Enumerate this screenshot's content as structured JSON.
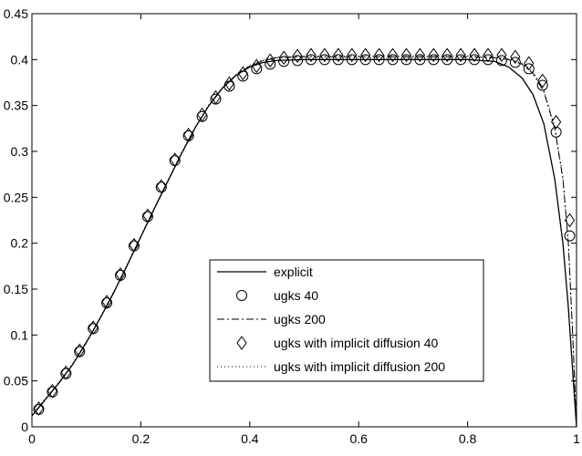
{
  "chart_data": {
    "type": "line",
    "title": "",
    "xlabel": "",
    "ylabel": "",
    "xlim": [
      0,
      1
    ],
    "ylim": [
      0,
      0.45
    ],
    "xticks": [
      0,
      0.2,
      0.4,
      0.6,
      0.8,
      1
    ],
    "yticks": [
      0,
      0.05,
      0.1,
      0.15,
      0.2,
      0.25,
      0.3,
      0.35,
      0.4,
      0.45
    ],
    "grid": false,
    "legend_position": "bottom-center",
    "series": [
      {
        "name": "explicit",
        "style": "solid",
        "x": [
          0,
          0.025,
          0.05,
          0.075,
          0.1,
          0.125,
          0.15,
          0.175,
          0.2,
          0.225,
          0.25,
          0.275,
          0.3,
          0.325,
          0.35,
          0.375,
          0.4,
          0.425,
          0.45,
          0.5,
          0.55,
          0.6,
          0.65,
          0.7,
          0.75,
          0.8,
          0.85,
          0.875,
          0.9,
          0.92,
          0.94,
          0.96,
          0.975,
          0.985,
          0.993,
          1
        ],
        "y": [
          0.012,
          0.03,
          0.048,
          0.068,
          0.092,
          0.118,
          0.146,
          0.176,
          0.207,
          0.238,
          0.268,
          0.298,
          0.326,
          0.35,
          0.369,
          0.383,
          0.392,
          0.397,
          0.399,
          0.4,
          0.4,
          0.4,
          0.4,
          0.4,
          0.4,
          0.4,
          0.398,
          0.392,
          0.38,
          0.362,
          0.33,
          0.27,
          0.2,
          0.13,
          0.06,
          0
        ]
      },
      {
        "name": "ugks 40",
        "style": "circle",
        "x": [
          0.0125,
          0.0375,
          0.0625,
          0.0875,
          0.1125,
          0.1375,
          0.1625,
          0.1875,
          0.2125,
          0.2375,
          0.2625,
          0.2875,
          0.3125,
          0.3375,
          0.3625,
          0.3875,
          0.4125,
          0.4375,
          0.4625,
          0.4875,
          0.5125,
          0.5375,
          0.5625,
          0.5875,
          0.6125,
          0.6375,
          0.6625,
          0.6875,
          0.7125,
          0.7375,
          0.7625,
          0.7875,
          0.8125,
          0.8375,
          0.8625,
          0.8875,
          0.9125,
          0.9375,
          0.9625,
          0.9875
        ],
        "y": [
          0.019,
          0.038,
          0.058,
          0.082,
          0.107,
          0.135,
          0.165,
          0.197,
          0.229,
          0.261,
          0.29,
          0.317,
          0.338,
          0.357,
          0.371,
          0.382,
          0.39,
          0.395,
          0.398,
          0.399,
          0.4,
          0.4,
          0.4,
          0.4,
          0.4,
          0.4,
          0.4,
          0.4,
          0.4,
          0.4,
          0.4,
          0.4,
          0.4,
          0.4,
          0.399,
          0.397,
          0.39,
          0.372,
          0.321,
          0.208
        ]
      },
      {
        "name": "ugks 200",
        "style": "dashdot",
        "x": [
          0,
          0.025,
          0.05,
          0.075,
          0.1,
          0.125,
          0.15,
          0.175,
          0.2,
          0.225,
          0.25,
          0.275,
          0.3,
          0.325,
          0.35,
          0.375,
          0.4,
          0.425,
          0.45,
          0.5,
          0.55,
          0.6,
          0.65,
          0.7,
          0.75,
          0.8,
          0.85,
          0.875,
          0.9,
          0.92,
          0.94,
          0.96,
          0.975,
          0.985,
          0.993,
          1
        ],
        "y": [
          0.012,
          0.03,
          0.048,
          0.068,
          0.092,
          0.118,
          0.146,
          0.176,
          0.207,
          0.238,
          0.268,
          0.298,
          0.326,
          0.35,
          0.369,
          0.383,
          0.393,
          0.399,
          0.402,
          0.403,
          0.403,
          0.403,
          0.403,
          0.403,
          0.403,
          0.403,
          0.402,
          0.4,
          0.395,
          0.385,
          0.365,
          0.325,
          0.27,
          0.2,
          0.1,
          0
        ]
      },
      {
        "name": "ugks with implicit diffusion 40",
        "style": "diamond",
        "x": [
          0.0125,
          0.0375,
          0.0625,
          0.0875,
          0.1125,
          0.1375,
          0.1625,
          0.1875,
          0.2125,
          0.2375,
          0.2625,
          0.2875,
          0.3125,
          0.3375,
          0.3625,
          0.3875,
          0.4125,
          0.4375,
          0.4625,
          0.4875,
          0.5125,
          0.5375,
          0.5625,
          0.5875,
          0.6125,
          0.6375,
          0.6625,
          0.6875,
          0.7125,
          0.7375,
          0.7625,
          0.7875,
          0.8125,
          0.8375,
          0.8625,
          0.8875,
          0.9125,
          0.9375,
          0.9625,
          0.9875
        ],
        "y": [
          0.02,
          0.039,
          0.059,
          0.083,
          0.108,
          0.136,
          0.166,
          0.198,
          0.23,
          0.262,
          0.291,
          0.318,
          0.34,
          0.359,
          0.374,
          0.385,
          0.393,
          0.399,
          0.402,
          0.404,
          0.405,
          0.405,
          0.405,
          0.405,
          0.405,
          0.405,
          0.405,
          0.405,
          0.405,
          0.405,
          0.405,
          0.405,
          0.405,
          0.405,
          0.405,
          0.403,
          0.396,
          0.377,
          0.332,
          0.225
        ]
      },
      {
        "name": "ugks with implicit diffusion 200",
        "style": "dotted",
        "x": [
          0,
          0.025,
          0.05,
          0.075,
          0.1,
          0.125,
          0.15,
          0.175,
          0.2,
          0.225,
          0.25,
          0.275,
          0.3,
          0.325,
          0.35,
          0.375,
          0.4,
          0.425,
          0.45,
          0.5,
          0.55,
          0.6,
          0.65,
          0.7,
          0.75,
          0.8,
          0.85,
          0.875,
          0.9,
          0.92,
          0.94,
          0.96,
          0.975,
          0.985,
          0.993,
          1
        ],
        "y": [
          0.013,
          0.031,
          0.049,
          0.069,
          0.093,
          0.119,
          0.147,
          0.177,
          0.208,
          0.239,
          0.269,
          0.299,
          0.327,
          0.351,
          0.37,
          0.384,
          0.394,
          0.4,
          0.403,
          0.404,
          0.404,
          0.404,
          0.404,
          0.404,
          0.404,
          0.404,
          0.403,
          0.401,
          0.396,
          0.387,
          0.367,
          0.327,
          0.272,
          0.2,
          0.1,
          0
        ]
      }
    ]
  }
}
